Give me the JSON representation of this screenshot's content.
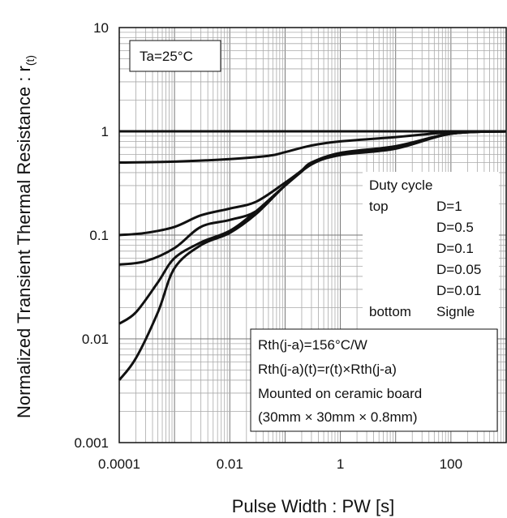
{
  "chart_data": {
    "type": "line",
    "title": "",
    "xlabel": "Pulse Width : PW [s]",
    "ylabel": "Normalized Transient Thermal Resistance : r",
    "ylabel_sub": "(t)",
    "x_scale": "log",
    "y_scale": "log",
    "xlim": [
      0.0001,
      1000
    ],
    "ylim": [
      0.001,
      10
    ],
    "x_ticks": [
      0.0001,
      0.01,
      1,
      100
    ],
    "x_tick_labels": [
      "0.0001",
      "0.01",
      "1",
      "100"
    ],
    "y_ticks": [
      0.001,
      0.01,
      0.1,
      1,
      10
    ],
    "y_tick_labels": [
      "0.001",
      "0.01",
      "0.1",
      "1",
      "10"
    ],
    "grid": true,
    "annotation_temp": "Ta=25°C",
    "legend": {
      "placement": "right",
      "title": "Duty cycle",
      "top_label": "top",
      "bottom_label": "bottom",
      "entries": [
        "D=1",
        "D=0.5",
        "D=0.1",
        "D=0.05",
        "D=0.01",
        "Signle"
      ]
    },
    "notes": [
      "Rth(j-a)=156°C/W",
      "Rth(j-a)(t)=r(t)×Rth(j-a)",
      "Mounted on ceramic board",
      "(30mm × 30mm × 0.8mm)"
    ],
    "series": [
      {
        "name": "D=1",
        "x": [
          0.0001,
          1000
        ],
        "y": [
          1,
          1
        ]
      },
      {
        "name": "D=0.5",
        "x": [
          0.0001,
          0.001,
          0.01,
          0.05,
          0.1,
          0.3,
          1,
          10,
          100,
          1000
        ],
        "y": [
          0.5,
          0.51,
          0.54,
          0.58,
          0.63,
          0.73,
          0.8,
          0.88,
          0.98,
          1
        ]
      },
      {
        "name": "D=0.1",
        "x": [
          0.0001,
          0.0003,
          0.001,
          0.003,
          0.01,
          0.03,
          0.1,
          0.2,
          0.3,
          1,
          10,
          100,
          1000
        ],
        "y": [
          0.1,
          0.105,
          0.12,
          0.155,
          0.18,
          0.21,
          0.32,
          0.42,
          0.5,
          0.62,
          0.72,
          0.95,
          1
        ]
      },
      {
        "name": "D=0.05",
        "x": [
          0.0001,
          0.0003,
          0.001,
          0.003,
          0.01,
          0.03,
          0.1,
          0.2,
          0.3,
          1,
          10,
          100,
          1000
        ],
        "y": [
          0.052,
          0.056,
          0.075,
          0.12,
          0.14,
          0.17,
          0.3,
          0.41,
          0.49,
          0.61,
          0.7,
          0.95,
          1
        ]
      },
      {
        "name": "D=0.01",
        "x": [
          0.0001,
          0.0002,
          0.0005,
          0.001,
          0.003,
          0.01,
          0.03,
          0.1,
          0.3,
          1,
          10,
          100,
          1000
        ],
        "y": [
          0.014,
          0.018,
          0.035,
          0.06,
          0.085,
          0.11,
          0.17,
          0.3,
          0.48,
          0.6,
          0.7,
          0.95,
          1
        ]
      },
      {
        "name": "Signle",
        "x": [
          0.0001,
          0.0002,
          0.0005,
          0.001,
          0.003,
          0.01,
          0.03,
          0.1,
          0.3,
          1,
          10,
          100,
          1000
        ],
        "y": [
          0.004,
          0.0065,
          0.018,
          0.048,
          0.08,
          0.105,
          0.16,
          0.3,
          0.48,
          0.59,
          0.68,
          0.95,
          1
        ]
      }
    ]
  }
}
